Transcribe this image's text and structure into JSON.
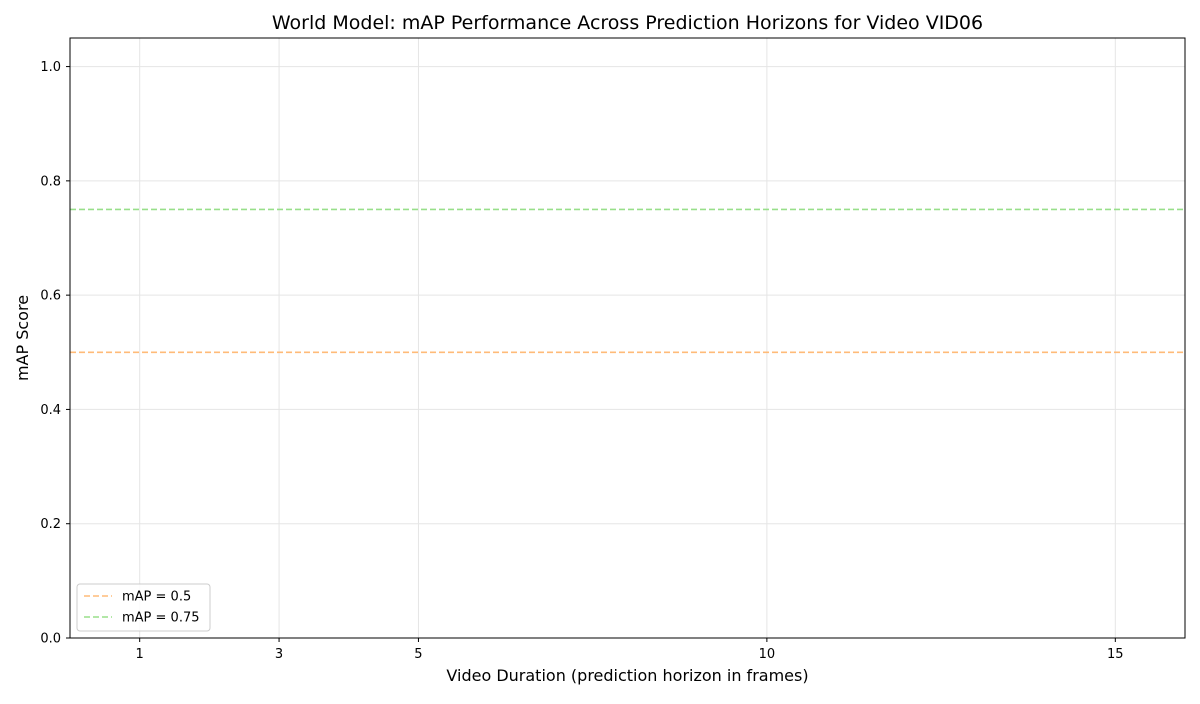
{
  "chart_data": {
    "type": "line",
    "title": "World Model: mAP Performance Across Prediction Horizons for Video VID06",
    "xlabel": "Video Duration (prediction horizon in frames)",
    "ylabel": "mAP Score",
    "xlim": [
      0,
      16
    ],
    "ylim": [
      0,
      1.05
    ],
    "x_ticks": [
      1,
      3,
      5,
      10,
      15
    ],
    "y_ticks": [
      0.0,
      0.2,
      0.4,
      0.6,
      0.8,
      1.0
    ],
    "x_tick_labels": [
      "1",
      "3",
      "5",
      "10",
      "15"
    ],
    "y_tick_labels": [
      "0.0",
      "0.2",
      "0.4",
      "0.6",
      "0.8",
      "1.0"
    ],
    "grid": true,
    "legend_position": "bottom-left",
    "series": [],
    "reference_lines": [
      {
        "name": "mAP = 0.5",
        "y": 0.5,
        "color": "#ffbb78",
        "style": "dashed"
      },
      {
        "name": "mAP = 0.75",
        "y": 0.75,
        "color": "#98df8a",
        "style": "dashed"
      }
    ]
  }
}
